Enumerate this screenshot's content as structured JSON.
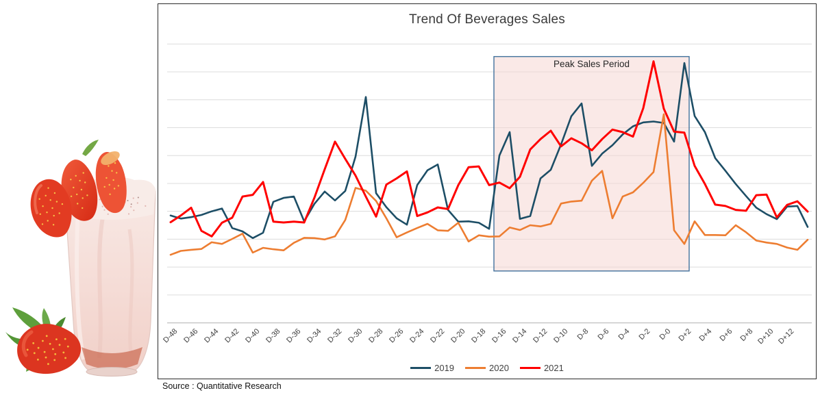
{
  "page": {
    "background": "#ffffff"
  },
  "decorative_image": {
    "description": "strawberry milkshake in a tall glass with strawberries on the rim and a strawberry with leaves at its base"
  },
  "chart": {
    "title": "Trend Of Beverages Sales",
    "annotation_label": "Peak Sales Period",
    "source_note": "Source : Quantitative Research",
    "colors": {
      "series_2019": "#1D4E66",
      "series_2020": "#ED7D31",
      "series_2021": "#FF0000",
      "annotation_fill": "#F6D7D3",
      "annotation_border": "#41719C",
      "gridline": "#DCDCDC",
      "axis_line": "#BFBFBF",
      "chart_border": "#2A2A2A"
    }
  },
  "chart_data": {
    "type": "line",
    "title": "Trend Of Beverages Sales",
    "xlabel": "",
    "ylabel": "",
    "x_axis_labels": [
      "D-48",
      "D-46",
      "D-44",
      "D-42",
      "D-40",
      "D-38",
      "D-36",
      "D-34",
      "D-32",
      "D-30",
      "D-28",
      "D-26",
      "D-24",
      "D-22",
      "D-20",
      "D-18",
      "D-16",
      "D-14",
      "D-12",
      "D-10",
      "D-8",
      "D-6",
      "D-4",
      "D-2",
      "D-0",
      "D+2",
      "D+4",
      "D+6",
      "D+8",
      "D+10",
      "D+12"
    ],
    "x_start_day": -48,
    "x_step_days": 1,
    "points_per_series": 63,
    "ylim": [
      0,
      110
    ],
    "y_axis_labels_shown": false,
    "gridlines": "horizontal, every 10 units, unlabeled",
    "legend_position": "bottom",
    "annotation": {
      "label": "Peak Sales Period",
      "from_day": -16,
      "to_day": 3,
      "y_from": 18.6,
      "y_to": 95.5
    },
    "series": [
      {
        "name": "2019",
        "color": "#1D4E66",
        "values": [
          38.5,
          37.4,
          37.9,
          38.7,
          40,
          41,
          34,
          32.8,
          30.4,
          32.3,
          43.4,
          44.8,
          45.3,
          36.4,
          42.7,
          47.1,
          43.9,
          47.3,
          59.6,
          81,
          46.5,
          41.5,
          37.5,
          35.2,
          49.4,
          54.7,
          56.8,
          40.5,
          36.3,
          36.4,
          35.9,
          33.7,
          60,
          68.4,
          37.3,
          38.3,
          51.8,
          54.9,
          64,
          74.1,
          78.7,
          56.3,
          60.7,
          63.7,
          67.6,
          70.5,
          71.9,
          72.2,
          71.7,
          65,
          93.2,
          74.2,
          68.4,
          59.1,
          54.5,
          49.8,
          45.5,
          41.3,
          39,
          37.2,
          41.7,
          41.9,
          34.4
        ]
      },
      {
        "name": "2020",
        "color": "#ED7D31",
        "values": [
          24.4,
          25.8,
          26.2,
          26.5,
          28.9,
          28.3,
          30.1,
          32,
          25.2,
          26.9,
          26.4,
          26,
          28.7,
          30.5,
          30.4,
          29.9,
          31,
          36.9,
          48.4,
          47.4,
          43.7,
          37.5,
          30.7,
          32.4,
          34,
          35.5,
          33.2,
          33,
          35.9,
          29.2,
          31.4,
          30.9,
          31,
          34.2,
          33.3,
          35,
          34.6,
          35.5,
          42.8,
          43.5,
          43.8,
          51,
          54.5,
          37.5,
          45.3,
          46.8,
          50.2,
          54.1,
          74.8,
          33.2,
          28.3,
          36.4,
          31.5,
          31.5,
          31.4,
          35,
          32.5,
          29.5,
          28.8,
          28.3,
          27,
          26.2,
          29.8
        ]
      },
      {
        "name": "2021",
        "color": "#FF0000",
        "values": [
          36.1,
          38.5,
          41.3,
          33,
          31,
          35.9,
          37.7,
          45.3,
          45.9,
          50.5,
          36.3,
          36,
          36.3,
          36,
          44.9,
          55.1,
          65,
          58.8,
          52.8,
          45.3,
          38.1,
          49.6,
          51.8,
          54.3,
          38.3,
          39.6,
          41.4,
          40.8,
          49.4,
          55.8,
          56.1,
          49.4,
          50.3,
          48.3,
          52.4,
          62.2,
          65.9,
          68.9,
          63.3,
          66.2,
          64.4,
          61.9,
          65.9,
          69.3,
          68.4,
          66.8,
          77,
          93.8,
          76.8,
          68.6,
          68.2,
          56.3,
          49.8,
          42.4,
          41.9,
          40.5,
          40.2,
          45.8,
          46,
          37.8,
          42.3,
          43.6,
          39.9
        ]
      }
    ]
  }
}
